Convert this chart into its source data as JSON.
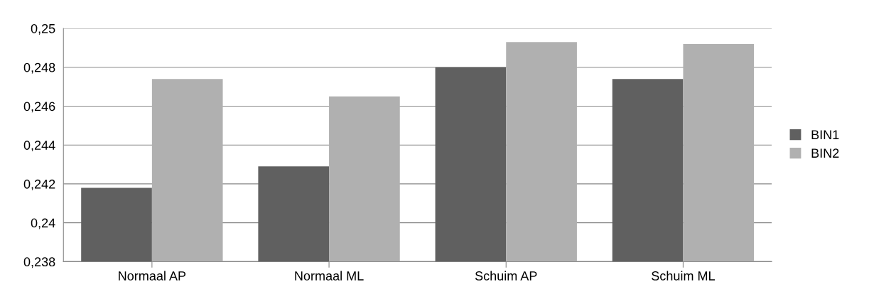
{
  "chart_data": {
    "type": "bar",
    "categories": [
      "Normaal AP",
      "Normaal ML",
      "Schuim AP",
      "Schuim ML"
    ],
    "series": [
      {
        "name": "BIN1",
        "color": "#606060",
        "values": [
          0.2418,
          0.2429,
          0.248,
          0.2474
        ]
      },
      {
        "name": "BIN2",
        "color": "#b0b0b0",
        "values": [
          0.2474,
          0.2465,
          0.2493,
          0.2492
        ]
      }
    ],
    "ylim": [
      0.238,
      0.25
    ],
    "yticks": [
      {
        "value": 0.238,
        "label": "0,238"
      },
      {
        "value": 0.24,
        "label": "0,24"
      },
      {
        "value": 0.242,
        "label": "0,242"
      },
      {
        "value": 0.244,
        "label": "0,244"
      },
      {
        "value": 0.246,
        "label": "0,246"
      },
      {
        "value": 0.248,
        "label": "0,248"
      },
      {
        "value": 0.25,
        "label": "0,25"
      }
    ],
    "grid": "y",
    "legend": "right"
  }
}
